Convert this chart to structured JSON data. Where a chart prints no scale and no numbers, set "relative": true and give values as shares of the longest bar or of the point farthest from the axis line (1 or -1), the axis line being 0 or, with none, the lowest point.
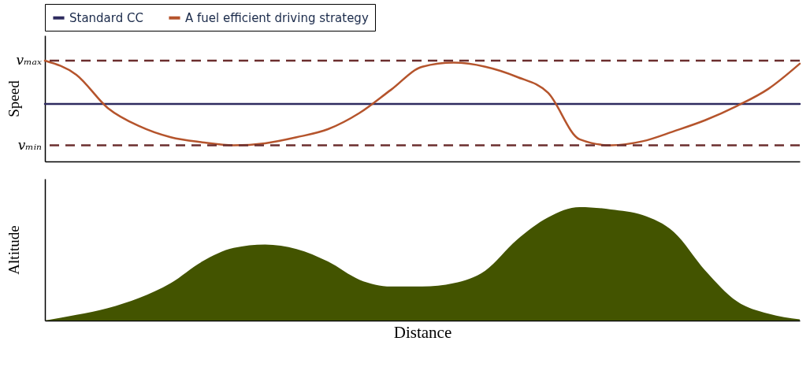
{
  "chart_data": [
    {
      "type": "line",
      "relative": true,
      "ylabel": "Speed",
      "legend": "top",
      "line_style": "solid",
      "categories": [
        null,
        null,
        null,
        null,
        null,
        null,
        null,
        null,
        null,
        null,
        null,
        null,
        null,
        null,
        null,
        null,
        null,
        null,
        null,
        null,
        null,
        null,
        null,
        null,
        null
      ],
      "series": [
        {
          "name": "Standard CC",
          "color": "#2e2b5f",
          "values": [
            0.57,
            0.57,
            0.57,
            0.57,
            0.57,
            0.57,
            0.57,
            0.57,
            0.57,
            0.57,
            0.57,
            0.57,
            0.57,
            0.57,
            0.57,
            0.57,
            0.57,
            0.57,
            0.57,
            0.57,
            0.57,
            0.57,
            0.57,
            0.57,
            0.57
          ]
        },
        {
          "name": "A fuel efficient driving strategy",
          "color": "#b5542c",
          "values": [
            1.0,
            0.86,
            0.53,
            0.35,
            0.24,
            0.19,
            0.16,
            0.18,
            0.24,
            0.32,
            0.48,
            0.71,
            0.94,
            0.98,
            0.94,
            0.84,
            0.68,
            0.22,
            0.16,
            0.2,
            0.3,
            0.41,
            0.55,
            0.72,
            0.97
          ]
        }
      ],
      "ref_lines": [
        {
          "axis": "y",
          "value": 1.0,
          "label": "vₘₐₓ",
          "color": "#6b2e2e",
          "line_style": "dashed"
        },
        {
          "axis": "y",
          "value": 0.16,
          "label": "vₘᵢₙ",
          "color": "#6b2e2e",
          "line_style": "dashed"
        }
      ]
    },
    {
      "type": "area",
      "relative": true,
      "ylabel": "Altitude",
      "xlabel": "Distance",
      "color": "#435400",
      "categories": [
        null,
        null,
        null,
        null,
        null,
        null,
        null,
        null,
        null,
        null,
        null,
        null,
        null,
        null,
        null,
        null,
        null,
        null,
        null,
        null,
        null,
        null,
        null,
        null,
        null
      ],
      "values": [
        0,
        0.05,
        0.11,
        0.2,
        0.33,
        0.52,
        0.64,
        0.67,
        0.63,
        0.52,
        0.36,
        0.3,
        0.3,
        0.33,
        0.44,
        0.71,
        0.91,
        1.0,
        0.98,
        0.93,
        0.78,
        0.44,
        0.17,
        0.06,
        0.01
      ]
    }
  ]
}
